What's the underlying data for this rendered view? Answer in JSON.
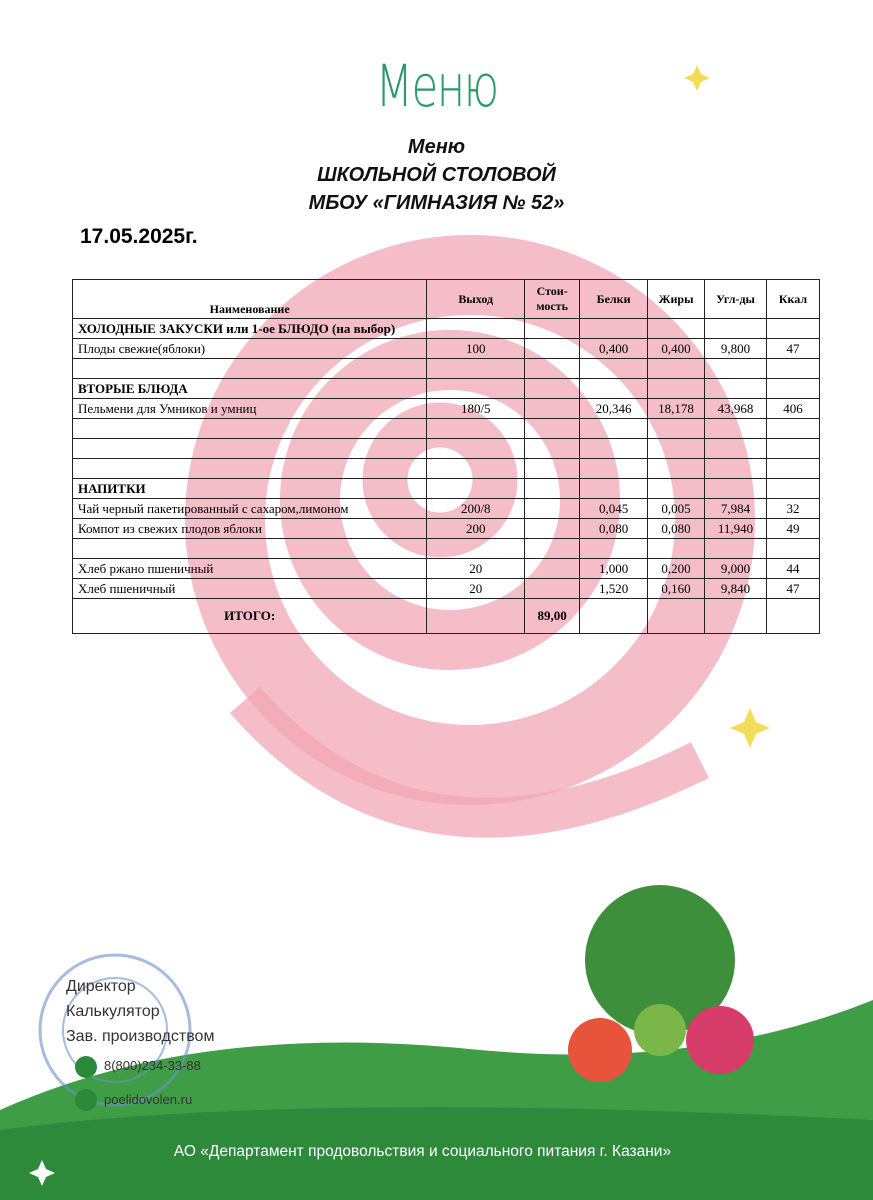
{
  "header": {
    "logo": "Меню",
    "title": "Меню",
    "subtitle1": "ШКОЛЬНОЙ СТОЛОВОЙ",
    "subtitle2": "МБОУ «ГИМНАЗИЯ № 52»",
    "date": "17.05.2025г."
  },
  "table": {
    "columns": [
      "Наименование",
      "Выход",
      "Стои-мость",
      "Белки",
      "Жиры",
      "Угл-ды",
      "Ккал"
    ],
    "rows": [
      [
        "ХОЛОДНЫЕ ЗАКУСКИ или 1-ое БЛЮДО (на выбор)",
        null,
        null,
        null,
        null,
        null,
        null
      ],
      [
        "Плоды свежие(яблоки)",
        "100",
        null,
        "0,400",
        "0,400",
        "9,800",
        "47"
      ],
      [
        null,
        null,
        null,
        null,
        null,
        null,
        null
      ],
      [
        "ВТОРЫЕ БЛЮДА",
        null,
        null,
        null,
        null,
        null,
        null
      ],
      [
        "Пельмени для Умников и умниц",
        "180/5",
        null,
        "20,346",
        "18,178",
        "43,968",
        "406"
      ],
      [
        null,
        null,
        null,
        null,
        null,
        null,
        null
      ],
      [
        null,
        null,
        null,
        null,
        null,
        null,
        null
      ],
      [
        null,
        null,
        null,
        null,
        null,
        null,
        null
      ],
      [
        "НАПИТКИ",
        null,
        null,
        null,
        null,
        null,
        null
      ],
      [
        "Чай черный пакетированный с сахаром,лимоном",
        "200/8",
        null,
        "0,045",
        "0,005",
        "7,984",
        "32"
      ],
      [
        "Компот из свежих плодов яблоки",
        "200",
        null,
        "0,080",
        "0,080",
        "11,940",
        "49"
      ],
      [
        null,
        null,
        null,
        null,
        null,
        null,
        null
      ],
      [
        "Хлеб ржано пшеничный",
        "20",
        null,
        "1,000",
        "0,200",
        "9,000",
        "44"
      ],
      [
        "Хлеб пшеничный",
        "20",
        null,
        "1,520",
        "0,160",
        "9,840",
        "47"
      ],
      [
        "ИТОГО:",
        null,
        "89,00",
        null,
        null,
        null,
        null
      ]
    ]
  },
  "footer": {
    "role1": "Директор",
    "role2": "Калькулятор",
    "role3": "Зав. производством",
    "phone": "8(800)234-33-88",
    "site": "poelidovolen.ru",
    "org": "АО «Департамент продовольствия и социального питания г. Казани»"
  }
}
